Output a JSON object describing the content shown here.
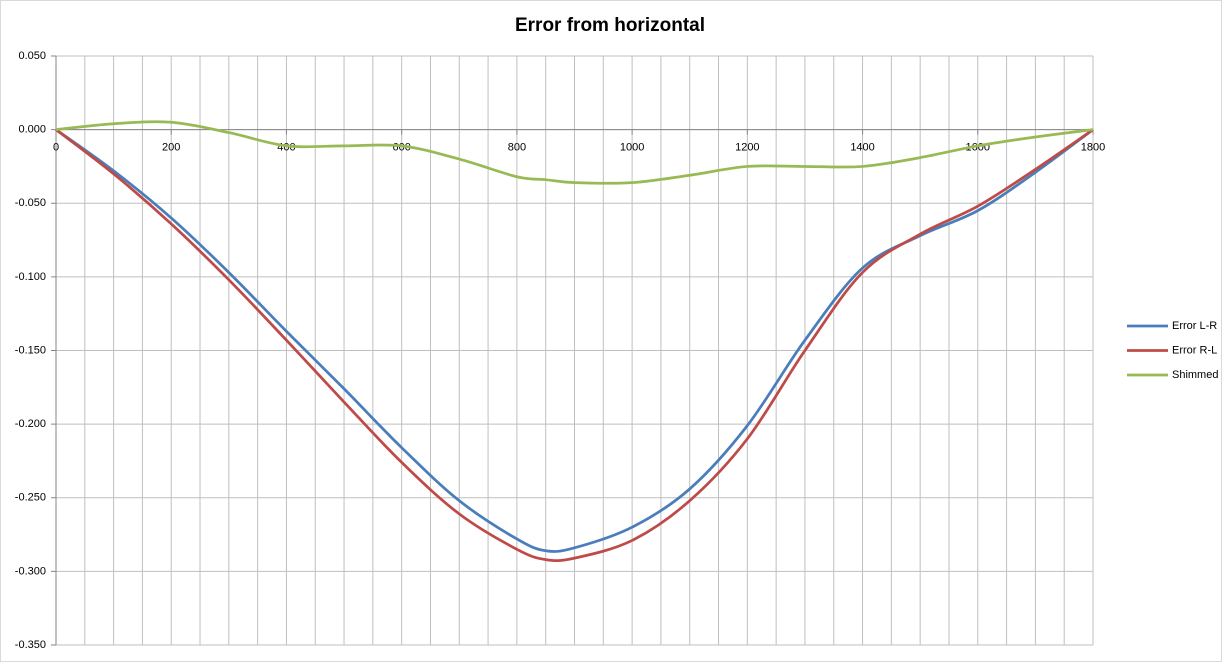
{
  "chart_data": {
    "type": "line",
    "title": "Error from horizontal",
    "x": [
      0,
      100,
      200,
      300,
      400,
      500,
      600,
      700,
      800,
      850,
      900,
      1000,
      1100,
      1200,
      1300,
      1400,
      1500,
      1600,
      1700,
      1800
    ],
    "series": [
      {
        "name": "Error L-R",
        "color": "#4a7ebb",
        "values": [
          0,
          -0.028,
          -0.06,
          -0.097,
          -0.137,
          -0.176,
          -0.216,
          -0.252,
          -0.278,
          -0.286,
          -0.284,
          -0.27,
          -0.244,
          -0.201,
          -0.143,
          -0.094,
          -0.072,
          -0.055,
          -0.029,
          0
        ]
      },
      {
        "name": "Error R-L",
        "color": "#be4b48",
        "values": [
          0,
          -0.03,
          -0.064,
          -0.102,
          -0.143,
          -0.185,
          -0.226,
          -0.261,
          -0.285,
          -0.292,
          -0.291,
          -0.279,
          -0.252,
          -0.21,
          -0.15,
          -0.097,
          -0.071,
          -0.052,
          -0.027,
          0
        ]
      },
      {
        "name": "Shimmed",
        "color": "#98b954",
        "values": [
          0,
          0.004,
          0.005,
          -0.002,
          -0.011,
          -0.011,
          -0.011,
          -0.02,
          -0.032,
          -0.034,
          -0.036,
          -0.036,
          -0.031,
          -0.025,
          -0.025,
          -0.025,
          -0.019,
          -0.011,
          -0.005,
          0
        ]
      }
    ],
    "xlim": [
      0,
      1800
    ],
    "xticks": [
      0,
      200,
      400,
      600,
      800,
      1000,
      1200,
      1400,
      1600,
      1800
    ],
    "xgrid": [
      0,
      50,
      100,
      150,
      200,
      250,
      300,
      350,
      400,
      450,
      500,
      550,
      600,
      650,
      700,
      750,
      800,
      850,
      900,
      950,
      1000,
      1050,
      1100,
      1150,
      1200,
      1250,
      1300,
      1350,
      1400,
      1450,
      1500,
      1550,
      1600,
      1650,
      1700,
      1750,
      1800
    ],
    "ylim": [
      -0.35,
      0.05
    ],
    "yticks": [
      {
        "value": -0.35,
        "label": "-0.350"
      },
      {
        "value": -0.3,
        "label": "-0.300"
      },
      {
        "value": -0.25,
        "label": "-0.250"
      },
      {
        "value": -0.2,
        "label": "-0.200"
      },
      {
        "value": -0.15,
        "label": "-0.150"
      },
      {
        "value": -0.1,
        "label": "-0.100"
      },
      {
        "value": -0.05,
        "label": "-0.050"
      },
      {
        "value": 0,
        "label": "0.000"
      },
      {
        "value": 0.05,
        "label": "0.050"
      }
    ],
    "grid": true,
    "legend": "right"
  }
}
